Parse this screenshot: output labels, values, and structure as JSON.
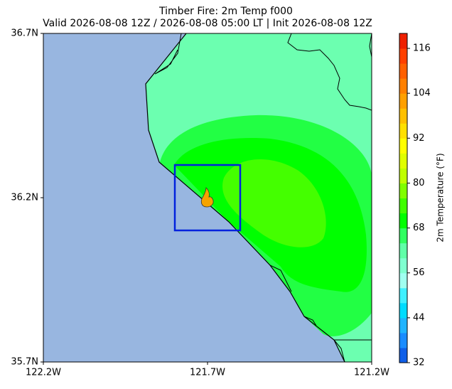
{
  "map": {
    "title": "Timber Fire: 2m Temp f000",
    "subtitle": "Valid 2026-08-08 12Z / 2026-08-08 05:00 LT | Init 2026-08-08 12Z",
    "lon_lim": [
      -122.2,
      -121.2
    ],
    "lat_lim": [
      35.7,
      36.7
    ],
    "lon_ticks": [
      {
        "value": -122.2,
        "label": "122.2W"
      },
      {
        "value": -121.7,
        "label": "121.7W"
      },
      {
        "value": -121.2,
        "label": "121.2W"
      }
    ],
    "lat_ticks": [
      {
        "value": 36.7,
        "label": "36.7N"
      },
      {
        "value": 36.2,
        "label": "36.2N"
      },
      {
        "value": 35.7,
        "label": "35.7N"
      }
    ],
    "colorbar": {
      "label": "2m Temperature (°F)",
      "lim": [
        32,
        120
      ],
      "ticks": [
        32,
        44,
        56,
        68,
        80,
        92,
        104,
        116
      ],
      "colors": [
        "#0f5fe8",
        "#1a8cff",
        "#20b4ff",
        "#00dcff",
        "#40f0ff",
        "#a0fff0",
        "#80ffd0",
        "#60ffa8",
        "#30ff60",
        "#00ff00",
        "#40ff00",
        "#80ff00",
        "#c0ff00",
        "#e0ff00",
        "#ffff00",
        "#ffe000",
        "#ffc000",
        "#ffa000",
        "#ff8000",
        "#ff6000",
        "#ff4000",
        "#ee2000"
      ]
    }
  }
}
